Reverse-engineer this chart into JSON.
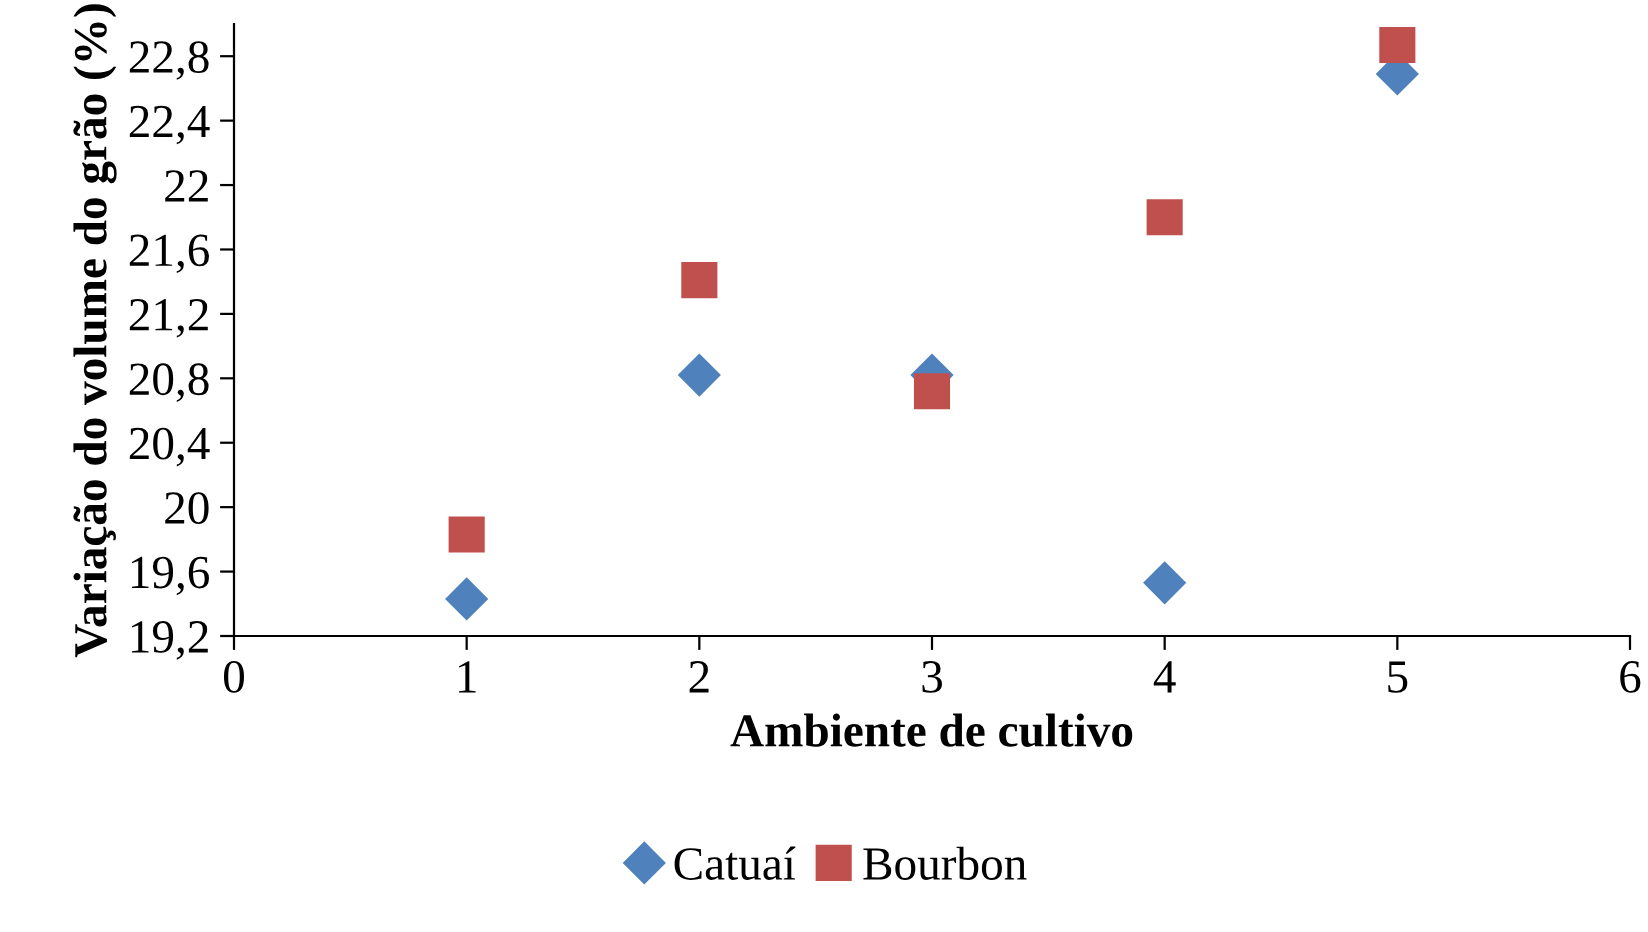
{
  "chart_data": {
    "type": "scatter",
    "xlabel": "Ambiente de cultivo",
    "ylabel": "Variação do volume do grão (%)",
    "x": [
      1,
      2,
      3,
      4,
      5
    ],
    "series": [
      {
        "name": "Catuaí",
        "color": "#4f81bd",
        "marker": "diamond",
        "values": [
          19.43,
          20.82,
          20.82,
          19.53,
          22.69
        ]
      },
      {
        "name": "Bourbon",
        "color": "#c0504d",
        "marker": "square",
        "values": [
          19.83,
          21.41,
          20.72,
          21.8,
          22.87
        ]
      }
    ],
    "xlim": [
      0,
      6
    ],
    "xticks": [
      0,
      1,
      2,
      3,
      4,
      5,
      6
    ],
    "ylim": [
      19.2,
      23.0
    ],
    "yticks": [
      {
        "value": 19.2,
        "label": "19,2"
      },
      {
        "value": 19.6,
        "label": "19,6"
      },
      20,
      {
        "value": 20.4,
        "label": "20,4"
      },
      {
        "value": 20.8,
        "label": "20,8"
      },
      {
        "value": 21.2,
        "label": "21,2"
      },
      {
        "value": 21.6,
        "label": "21,6"
      },
      22,
      {
        "value": 22.4,
        "label": "22,4"
      },
      {
        "value": 22.8,
        "label": "22,8"
      }
    ],
    "grid": false,
    "legend": "bottom"
  }
}
